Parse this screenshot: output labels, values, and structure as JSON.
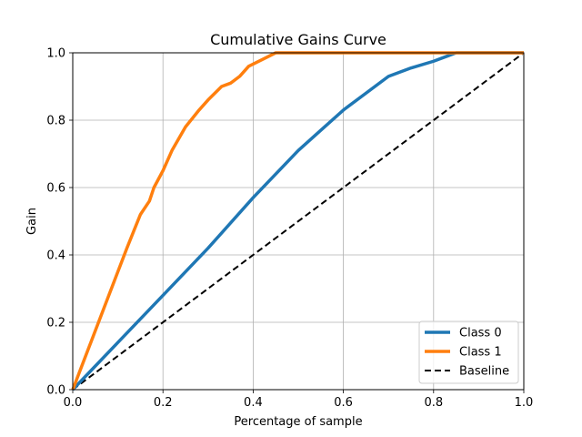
{
  "chart_data": {
    "type": "line",
    "title": "Cumulative Gains Curve",
    "xlabel": "Percentage of sample",
    "ylabel": "Gain",
    "xlim": [
      0,
      1
    ],
    "ylim": [
      0,
      1
    ],
    "xticks": [
      "0.0",
      "0.2",
      "0.4",
      "0.6",
      "0.8",
      "1.0"
    ],
    "yticks": [
      "0.0",
      "0.2",
      "0.4",
      "0.6",
      "0.8",
      "1.0"
    ],
    "grid": true,
    "legend_position": "lower right",
    "series": [
      {
        "name": "Class 0",
        "color": "#1f77b4",
        "style": "solid",
        "x": [
          0.0,
          0.1,
          0.2,
          0.3,
          0.4,
          0.5,
          0.55,
          0.6,
          0.65,
          0.7,
          0.75,
          0.8,
          0.83,
          0.85,
          0.9,
          1.0
        ],
        "y": [
          0.0,
          0.14,
          0.28,
          0.42,
          0.57,
          0.71,
          0.77,
          0.83,
          0.88,
          0.93,
          0.955,
          0.975,
          0.99,
          1.0,
          1.0,
          1.0
        ]
      },
      {
        "name": "Class 1",
        "color": "#ff7f0e",
        "style": "solid",
        "x": [
          0.0,
          0.04,
          0.08,
          0.12,
          0.15,
          0.17,
          0.18,
          0.2,
          0.22,
          0.25,
          0.28,
          0.3,
          0.33,
          0.35,
          0.37,
          0.39,
          0.42,
          0.45,
          0.5,
          0.58,
          0.7,
          1.0
        ],
        "y": [
          0.0,
          0.14,
          0.28,
          0.42,
          0.52,
          0.56,
          0.6,
          0.65,
          0.71,
          0.78,
          0.83,
          0.86,
          0.9,
          0.91,
          0.93,
          0.96,
          0.98,
          1.0,
          1.0,
          1.0,
          1.0,
          1.0
        ]
      },
      {
        "name": "Baseline",
        "color": "#000000",
        "style": "dashed",
        "x": [
          0,
          1
        ],
        "y": [
          0,
          1
        ]
      }
    ]
  }
}
